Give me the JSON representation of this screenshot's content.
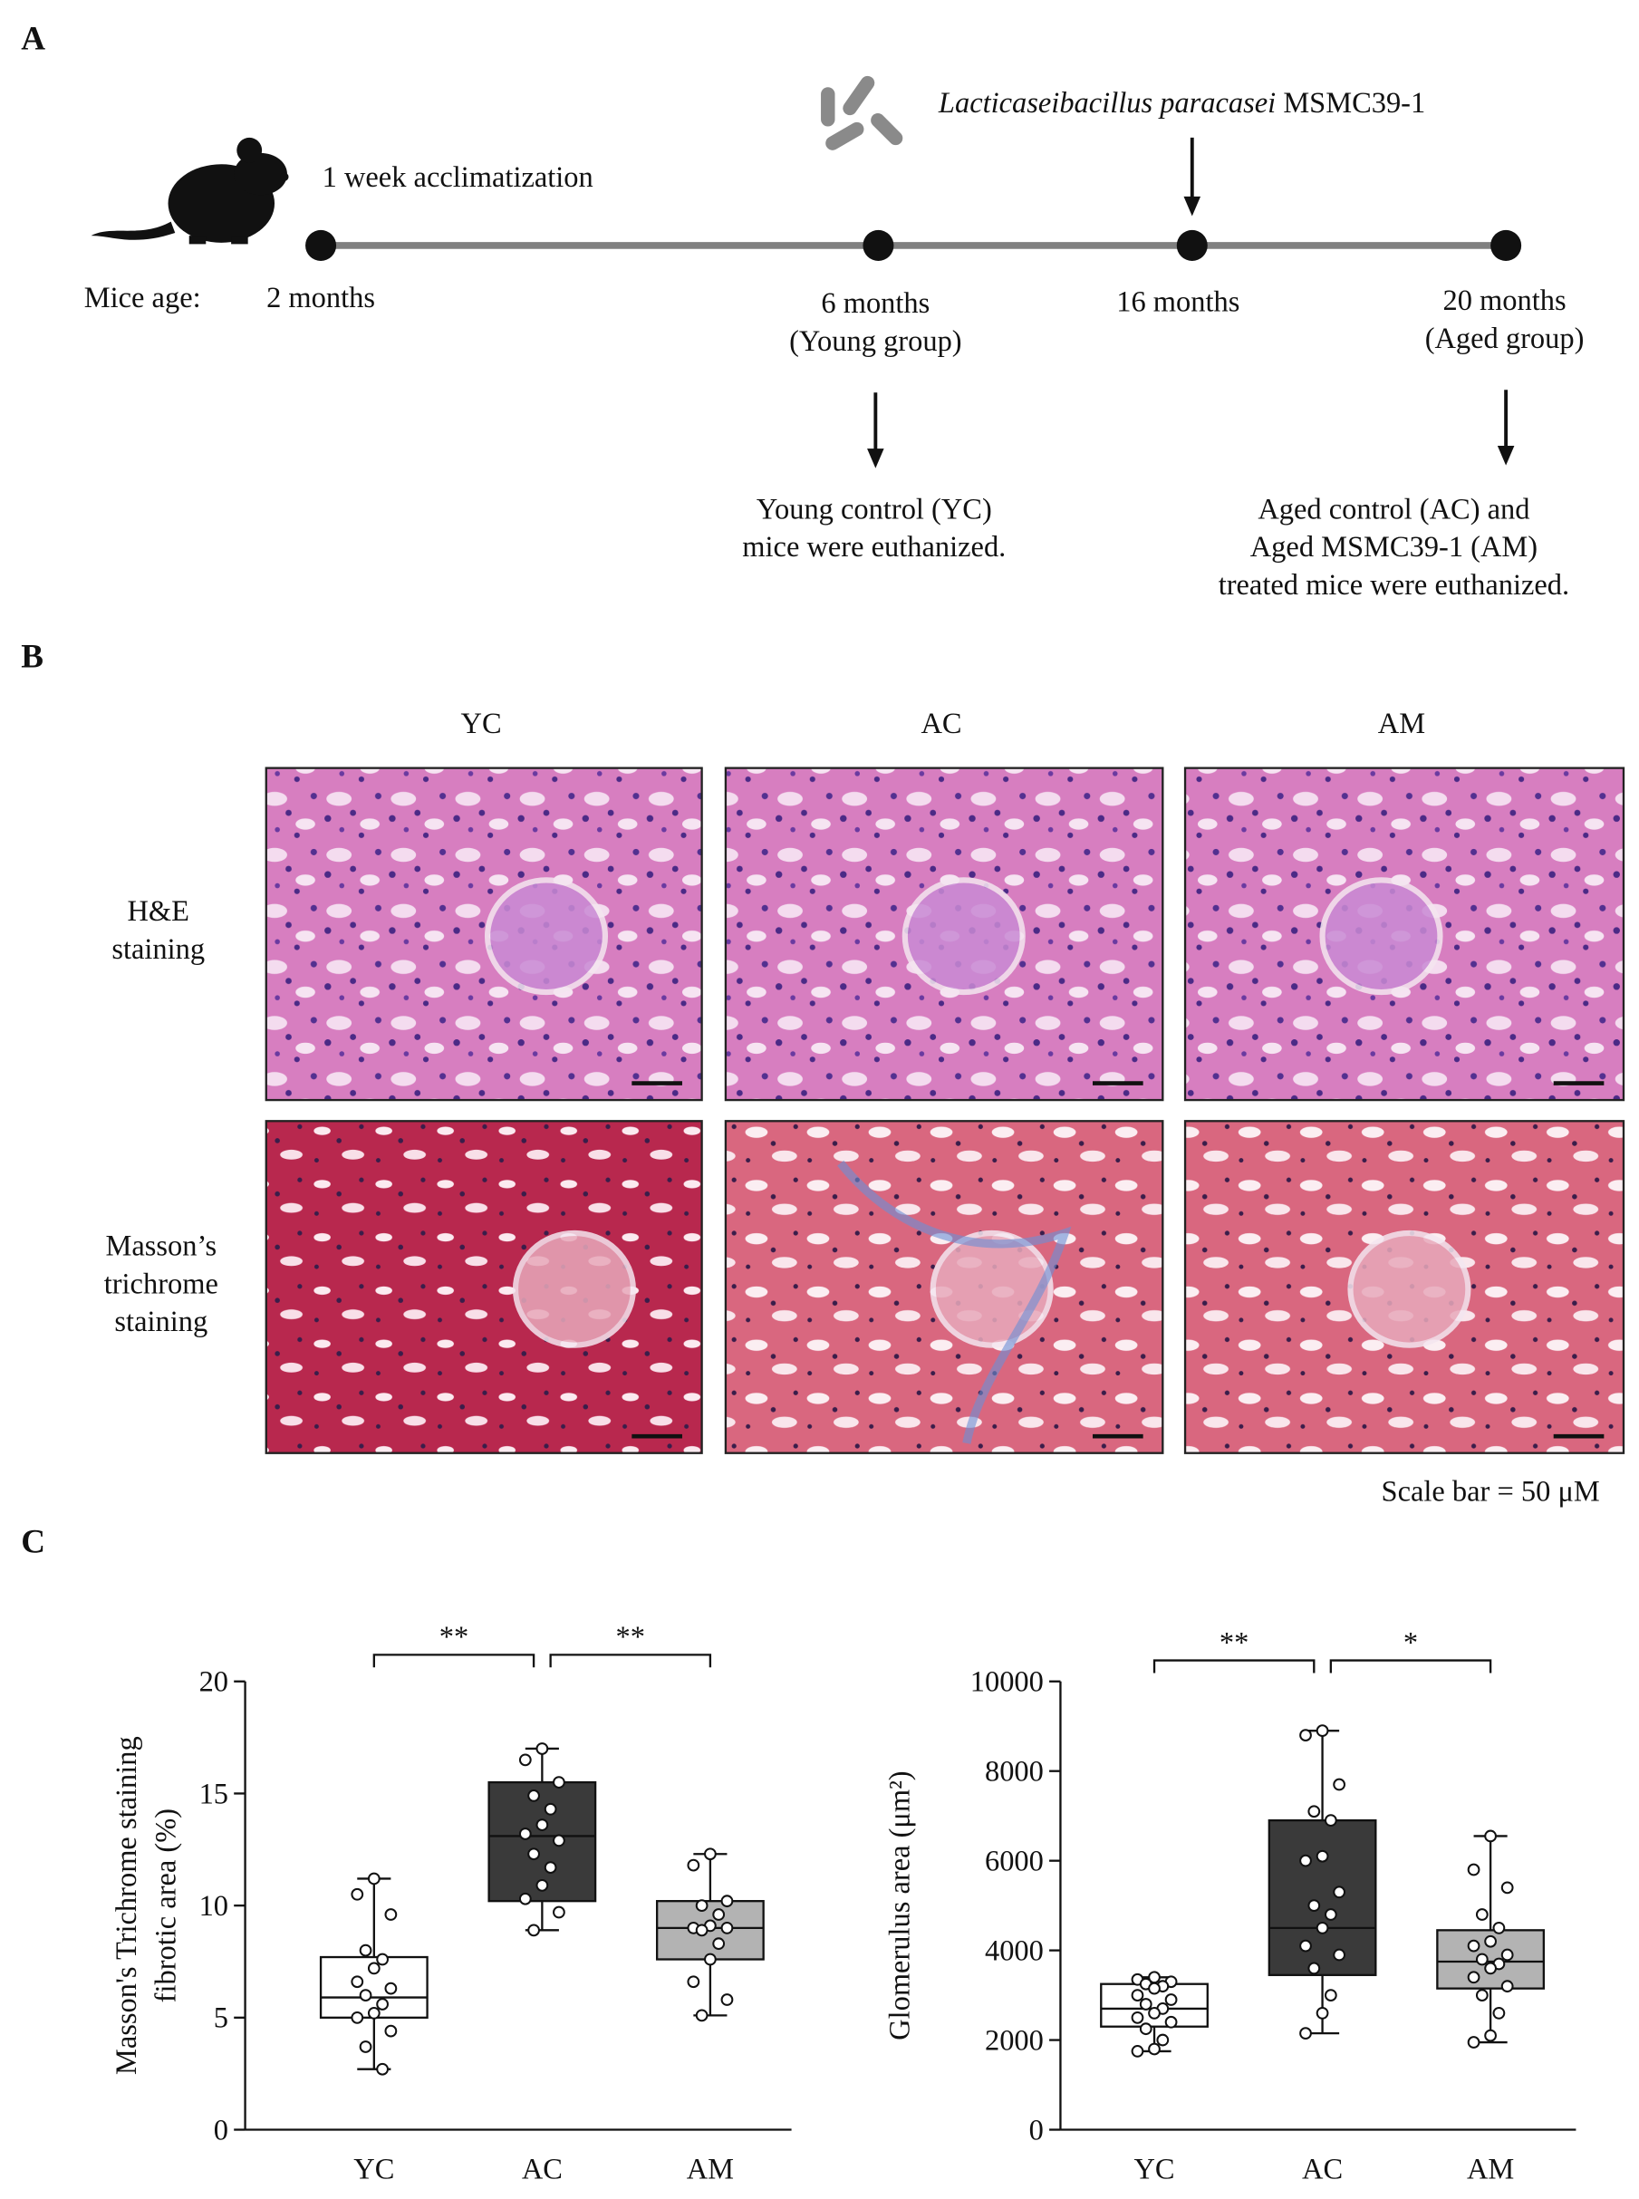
{
  "panel_a": {
    "label": "A",
    "treatment": {
      "species": "Lacticaseibacillus paracasei",
      "strain": "MSMC39-1"
    },
    "acclimatization": "1 week acclimatization",
    "age_label": "Mice age:",
    "timepoints": [
      {
        "lines": [
          "2 months"
        ]
      },
      {
        "lines": [
          "6 months",
          "(Young group)"
        ]
      },
      {
        "lines": [
          "16 months"
        ]
      },
      {
        "lines": [
          "20 months",
          "(Aged group)"
        ]
      }
    ],
    "outcomes": [
      {
        "lines": [
          "Young  control (YC)",
          "mice were euthanized."
        ]
      },
      {
        "lines": [
          "Aged control (AC) and",
          "Aged MSMC39-1 (AM)",
          "treated mice were euthanized."
        ]
      }
    ]
  },
  "panel_b": {
    "label": "B",
    "columns": [
      "YC",
      "AC",
      "AM"
    ],
    "rows": [
      {
        "lines": [
          "H&E",
          "staining"
        ]
      },
      {
        "lines": [
          "Masson’s",
          "trichrome",
          "staining"
        ]
      }
    ],
    "scale_note": "Scale bar = 50 μM"
  },
  "panel_c": {
    "label": "C"
  },
  "chart_data": [
    {
      "type": "box",
      "y_label_lines": [
        "Masson's Trichrome staining",
        "fibrotic area (%)"
      ],
      "categories": [
        "YC",
        "AC",
        "AM"
      ],
      "colors": [
        "#ffffff",
        "#3a3a3a",
        "#b3b3b3"
      ],
      "ylim": [
        0,
        20
      ],
      "yticks": [
        0,
        5,
        10,
        15,
        20
      ],
      "annotations": [
        "**",
        "**"
      ],
      "boxes": [
        {
          "min": 2.7,
          "q1": 5.0,
          "median": 5.9,
          "q3": 7.7,
          "max": 11.2,
          "points": [
            11.2,
            10.5,
            9.6,
            8.0,
            7.6,
            7.2,
            6.6,
            6.3,
            6.0,
            5.6,
            5.2,
            5.0,
            4.4,
            3.7,
            2.7
          ]
        },
        {
          "min": 8.9,
          "q1": 10.2,
          "median": 13.1,
          "q3": 15.5,
          "max": 17.0,
          "points": [
            17.0,
            16.5,
            15.5,
            14.9,
            14.3,
            13.6,
            13.2,
            12.9,
            12.3,
            11.7,
            10.9,
            10.3,
            9.7,
            8.9
          ]
        },
        {
          "min": 5.1,
          "q1": 7.6,
          "median": 9.0,
          "q3": 10.2,
          "max": 12.3,
          "points": [
            12.3,
            11.8,
            10.2,
            10.0,
            9.6,
            9.1,
            9.0,
            9.0,
            8.9,
            8.3,
            7.6,
            6.6,
            5.8,
            5.1
          ]
        }
      ]
    },
    {
      "type": "box",
      "y_label_lines": [
        "Glomerulus area (μm²)"
      ],
      "categories": [
        "YC",
        "AC",
        "AM"
      ],
      "colors": [
        "#ffffff",
        "#3a3a3a",
        "#b3b3b3"
      ],
      "ylim": [
        0,
        10000
      ],
      "yticks": [
        0,
        2000,
        4000,
        6000,
        8000,
        10000
      ],
      "annotations": [
        "**",
        "*"
      ],
      "boxes": [
        {
          "min": 1750,
          "q1": 2300,
          "median": 2700,
          "q3": 3250,
          "max": 3400,
          "points": [
            3400,
            3350,
            3300,
            3250,
            3200,
            3150,
            3000,
            2900,
            2800,
            2700,
            2600,
            2500,
            2400,
            2250,
            2000,
            1800,
            1750
          ]
        },
        {
          "min": 2150,
          "q1": 3450,
          "median": 4500,
          "q3": 6900,
          "max": 8900,
          "points": [
            8900,
            8800,
            7700,
            7100,
            6900,
            6100,
            6000,
            5300,
            5000,
            4800,
            4500,
            4100,
            3900,
            3600,
            3000,
            2600,
            2150
          ]
        },
        {
          "min": 1950,
          "q1": 3150,
          "median": 3750,
          "q3": 4450,
          "max": 6550,
          "points": [
            6550,
            5800,
            5400,
            4800,
            4500,
            4200,
            4100,
            3900,
            3800,
            3700,
            3600,
            3400,
            3200,
            3000,
            2600,
            2100,
            1950
          ]
        }
      ]
    }
  ]
}
